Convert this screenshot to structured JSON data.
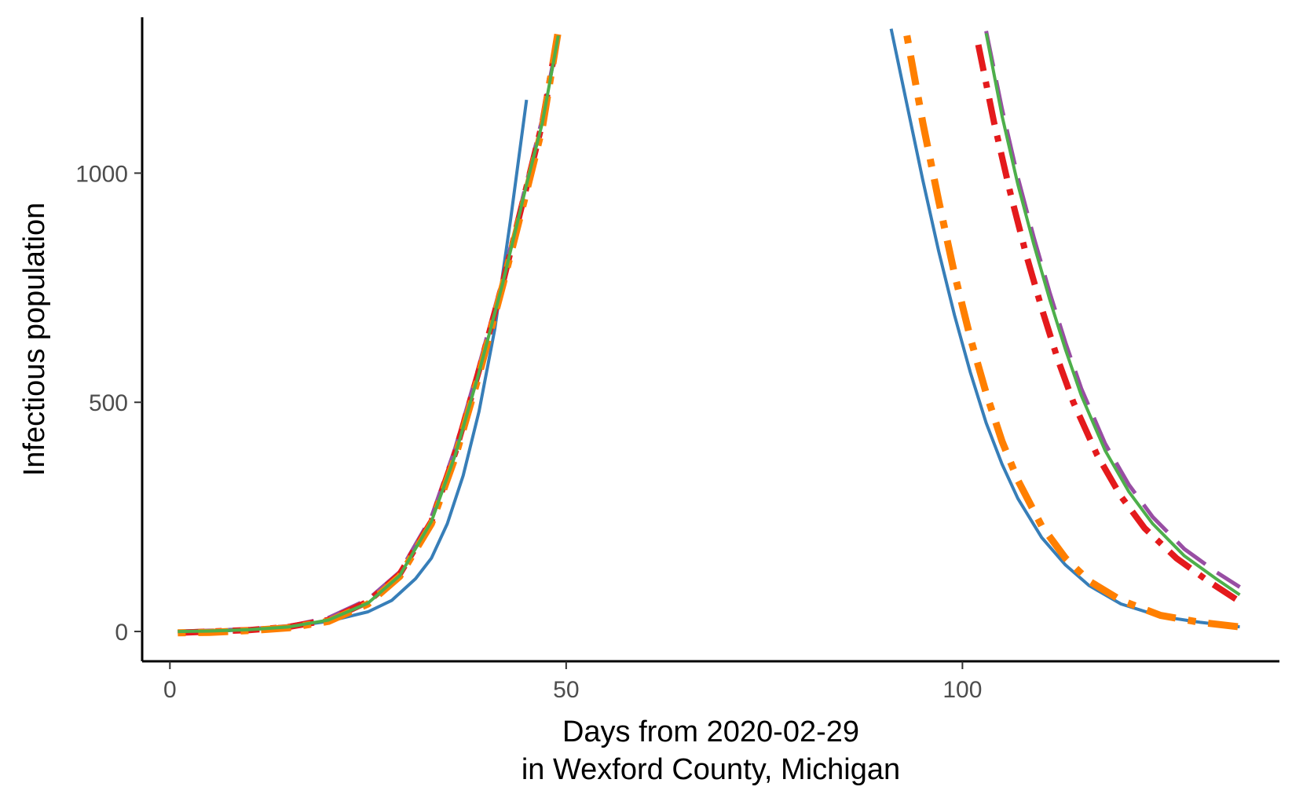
{
  "chart_data": {
    "type": "line",
    "title": "",
    "xlabel_lines": [
      "Days from 2020-02-29",
      "in Wexford County, Michigan"
    ],
    "ylabel": "Infectious population",
    "xlim": [
      -3.5,
      140
    ],
    "ylim": [
      -65,
      1340
    ],
    "x_ticks": [
      0,
      50,
      100
    ],
    "y_ticks": [
      0,
      500,
      1000
    ],
    "grid": false,
    "legend": "none",
    "series": [
      {
        "color": "#377eb8",
        "dash": "solid",
        "width": 4,
        "segments": [
          {
            "x": [
              1,
              5,
              10,
              15,
              20,
              25,
              28,
              31,
              33,
              35,
              37,
              39,
              41,
              43,
              45
            ],
            "y": [
              -2,
              0,
              4,
              10,
              22,
              43,
              68,
              115,
              160,
              235,
              340,
              480,
              660,
              900,
              1160
            ]
          },
          {
            "x": [
              91,
              93,
              95,
              97,
              99,
              101,
              103,
              105,
              107,
              110,
              113,
              116,
              120,
              125,
              130,
              135
            ],
            "y": [
              1315,
              1150,
              985,
              830,
              690,
              565,
              455,
              365,
              290,
              205,
              145,
              100,
              60,
              33,
              20,
              10
            ]
          }
        ]
      },
      {
        "color": "#984ea3",
        "dash": "long-dash",
        "width": 5,
        "segments": [
          {
            "x": [
              1,
              5,
              10,
              15,
              20,
              25,
              29,
              33,
              36,
              39,
              42,
              45,
              47,
              49
            ],
            "y": [
              0,
              2,
              5,
              12,
              30,
              70,
              130,
              250,
              400,
              580,
              770,
              980,
              1120,
              1300
            ]
          },
          {
            "x": [
              103,
              105,
              107,
              109,
              111,
              113,
              115,
              118,
              121,
              124,
              128,
              132,
              135
            ],
            "y": [
              1310,
              1140,
              990,
              860,
              740,
              630,
              530,
              410,
              320,
              250,
              180,
              130,
              97
            ]
          }
        ]
      },
      {
        "color": "#e41a1c",
        "dash": "dash-dot",
        "width": 8,
        "segments": [
          {
            "x": [
              1,
              5,
              10,
              15,
              20,
              25,
              29,
              33,
              36,
              39,
              42,
              45,
              47,
              49
            ],
            "y": [
              -3,
              0,
              3,
              10,
              25,
              65,
              125,
              240,
              390,
              570,
              760,
              970,
              1110,
              1310
            ]
          },
          {
            "x": [
              102,
              104,
              106,
              108,
              110,
              112,
              114,
              117,
              120,
              123,
              127,
              131,
              135
            ],
            "y": [
              1280,
              1110,
              960,
              825,
              705,
              595,
              500,
              385,
              295,
              225,
              160,
              110,
              65
            ]
          }
        ]
      },
      {
        "color": "#ff7f00",
        "dash": "dot-dash",
        "width": 9,
        "segments": [
          {
            "x": [
              1,
              5,
              10,
              15,
              20,
              25,
              29,
              33,
              36,
              39,
              42,
              45,
              47,
              49
            ],
            "y": [
              -3,
              -2,
              2,
              8,
              22,
              60,
              120,
              235,
              380,
              560,
              755,
              960,
              1100,
              1310
            ]
          },
          {
            "x": [
              93,
              95,
              97,
              99,
              101,
              103,
              105,
              107,
              110,
              113,
              116,
              120,
              125,
              130,
              135
            ],
            "y": [
              1300,
              1110,
              940,
              780,
              640,
              520,
              415,
              330,
              230,
              160,
              110,
              68,
              35,
              20,
              10
            ]
          }
        ]
      },
      {
        "color": "#4daf4a",
        "dash": "solid",
        "width": 4,
        "segments": [
          {
            "x": [
              1,
              5,
              10,
              15,
              20,
              25,
              29,
              33,
              36,
              39,
              42,
              45,
              47,
              49
            ],
            "y": [
              0,
              1,
              4,
              10,
              25,
              62,
              122,
              240,
              385,
              565,
              760,
              975,
              1110,
              1300
            ]
          },
          {
            "x": [
              103,
              105,
              107,
              109,
              111,
              113,
              115,
              118,
              121,
              124,
              128,
              132,
              135
            ],
            "y": [
              1305,
              1125,
              975,
              845,
              725,
              615,
              515,
              395,
              305,
              235,
              165,
              115,
              80
            ]
          }
        ]
      }
    ]
  }
}
